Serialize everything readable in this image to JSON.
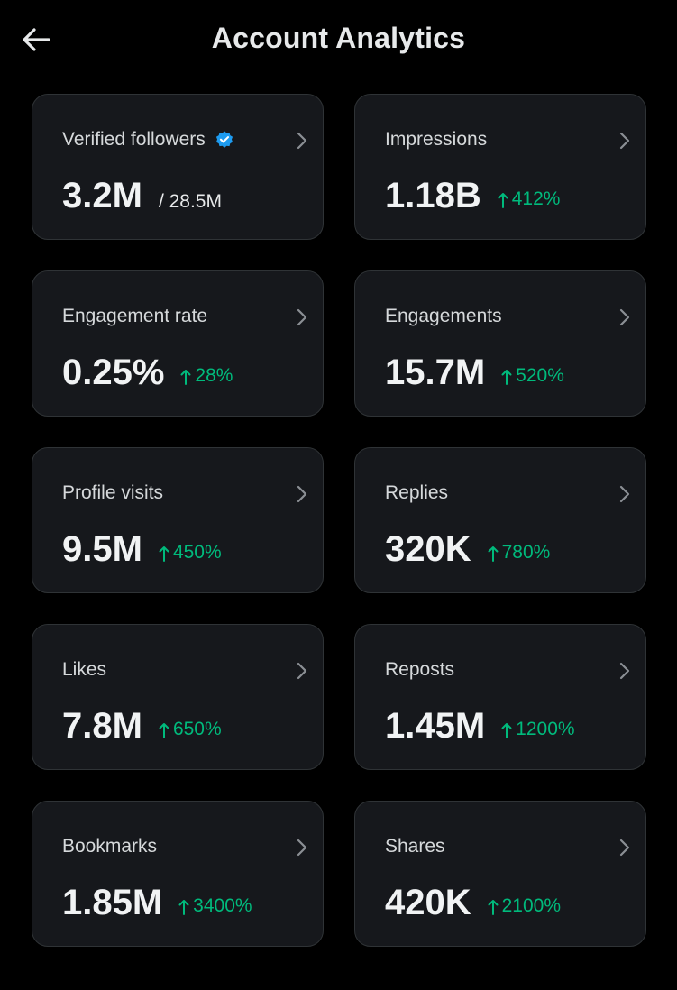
{
  "header": {
    "title": "Account Analytics",
    "back_icon": "arrow-left-icon"
  },
  "colors": {
    "background": "#000000",
    "card": "#16181c",
    "border": "#2f3336",
    "positive": "#00ba7c",
    "verified": "#1d9bf0"
  },
  "cards": [
    {
      "label": "Verified followers",
      "value": "3.2M",
      "total": "/ 28.5M",
      "change": "",
      "badge": "verified-badge-icon"
    },
    {
      "label": "Impressions",
      "value": "1.18B",
      "change": "412%"
    },
    {
      "label": "Engagement rate",
      "value": "0.25%",
      "change": "28%"
    },
    {
      "label": "Engagements",
      "value": "15.7M",
      "change": "520%"
    },
    {
      "label": "Profile visits",
      "value": "9.5M",
      "change": "450%"
    },
    {
      "label": "Replies",
      "value": "320K",
      "change": "780%"
    },
    {
      "label": "Likes",
      "value": "7.8M",
      "change": "650%"
    },
    {
      "label": "Reposts",
      "value": "1.45M",
      "change": "1200%"
    },
    {
      "label": "Bookmarks",
      "value": "1.85M",
      "change": "3400%"
    },
    {
      "label": "Shares",
      "value": "420K",
      "change": "2100%"
    }
  ]
}
